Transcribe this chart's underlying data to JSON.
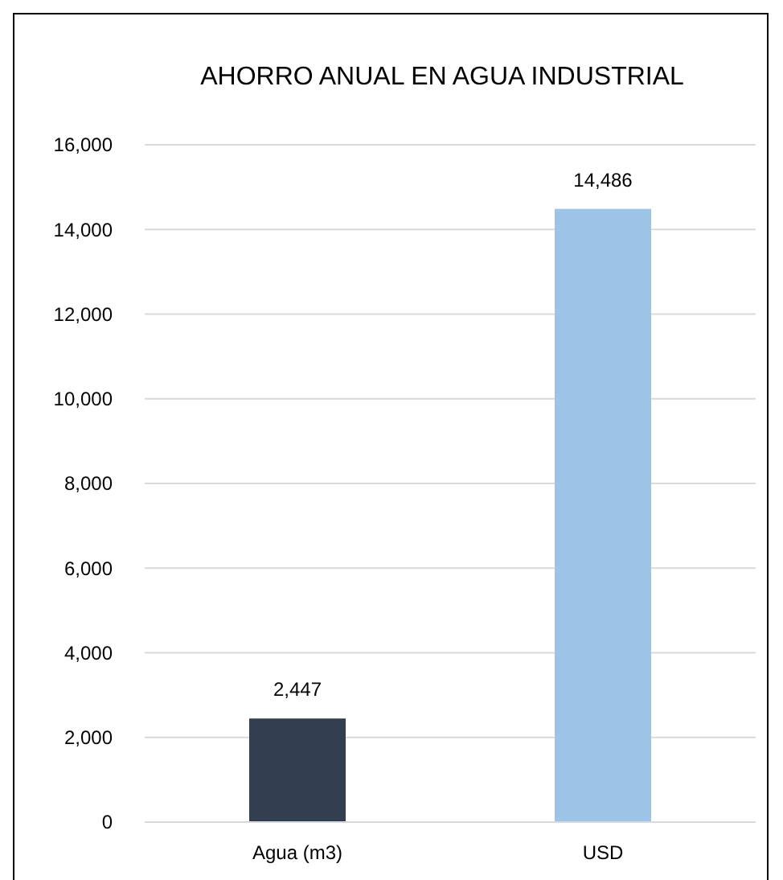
{
  "chart_data": {
    "type": "bar",
    "title": "AHORRO ANUAL EN AGUA INDUSTRIAL",
    "categories": [
      "Agua (m3)",
      "USD"
    ],
    "values": [
      2447,
      14486
    ],
    "colors": [
      "#333f50",
      "#9dc3e6"
    ],
    "value_labels": [
      "2,447",
      "14,486"
    ],
    "ylim": [
      0,
      16000
    ],
    "yticks": [
      0,
      {
        "value": 2000,
        "label": "2,000"
      },
      {
        "value": 4000,
        "label": "4,000"
      },
      {
        "value": 6000,
        "label": "6,000"
      },
      {
        "value": 8000,
        "label": "8,000"
      },
      {
        "value": 10000,
        "label": "10,000"
      },
      {
        "value": 12000,
        "label": "12,000"
      },
      {
        "value": 14000,
        "label": "14,000"
      },
      {
        "value": 16000,
        "label": "16,000"
      }
    ],
    "grid": "y"
  }
}
